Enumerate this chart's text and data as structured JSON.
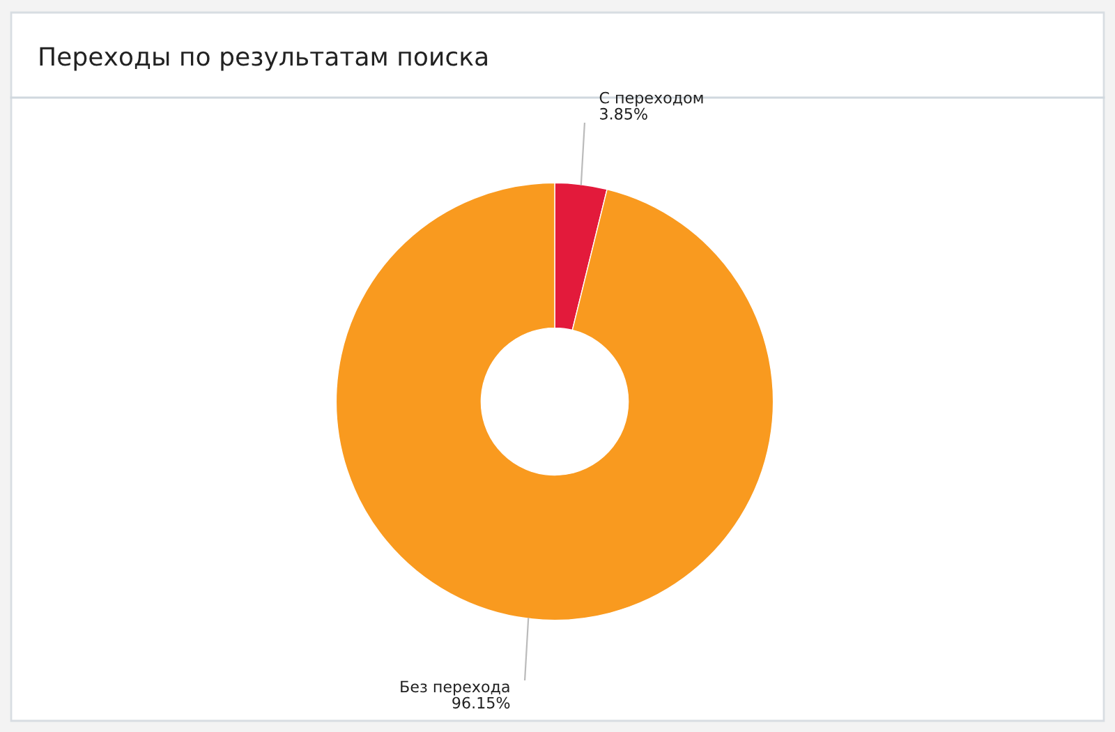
{
  "chart_data": {
    "type": "donut",
    "title": "Переходы по результатам поиска",
    "categories": [
      "С переходом",
      "Без перехода"
    ],
    "values": [
      3.85,
      96.15
    ],
    "value_labels": [
      "3.85%",
      "96.15%"
    ],
    "colors": [
      "#e31a3b",
      "#f99a1f"
    ],
    "legend": false
  }
}
